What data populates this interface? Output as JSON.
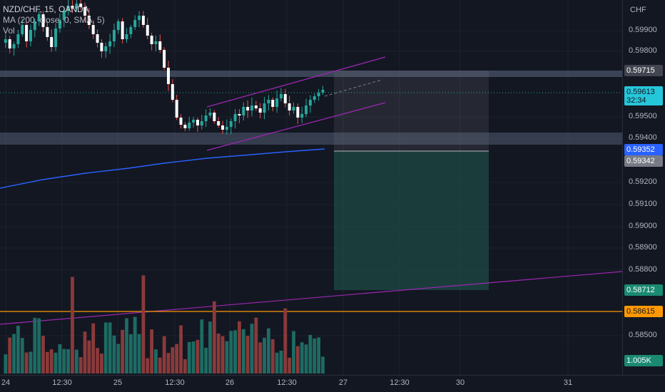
{
  "legend": {
    "symbol": "NZD/CHF, 15, OANDA",
    "ma": "MA (200, close, 0, SMA, 5)",
    "vol": "Vol"
  },
  "currency": "CHF",
  "price_ticks": [
    "0.59900",
    "0.59800",
    "0.59500",
    "0.59400",
    "0.59200",
    "0.59100",
    "0.59000",
    "0.58900",
    "0.58800",
    "0.58500"
  ],
  "badges": {
    "resistance": "0.59715",
    "last_price": "0.59613",
    "countdown": "32:34",
    "ma_value": "0.59352",
    "entry": "0.59342",
    "target": "0.58712",
    "orange_line": "0.58615",
    "volume": "1.005K"
  },
  "time_ticks": [
    "24",
    "12:30",
    "25",
    "12:30",
    "26",
    "12:30",
    "27",
    "12:30",
    "30",
    "31"
  ],
  "colors": {
    "up": "#26a69a",
    "down": "#ef5350",
    "ma": "#2962ff",
    "channel": "#9c27b0",
    "orange": "#ff9800"
  },
  "chart_data": {
    "type": "candlestick",
    "title": "NZD/CHF, 15, OANDA",
    "price_range": [
      0.5845,
      0.6005
    ],
    "levels": {
      "resistance_zone": 0.59715,
      "support_zone": 0.594,
      "orange": 0.58615,
      "last": 0.59613
    },
    "position": {
      "entry": 0.59342,
      "stop": 0.59715,
      "target": 0.58712
    }
  }
}
